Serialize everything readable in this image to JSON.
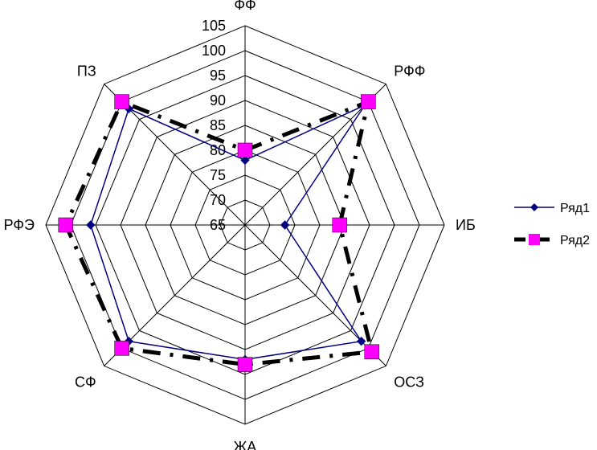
{
  "chart_data": {
    "type": "radar",
    "title": "",
    "categories": [
      "ФФ",
      "РФФ",
      "ИБ",
      "ОСЗ",
      "ЖА",
      "СФ",
      "РФЭ",
      "ПЗ"
    ],
    "rmin": 65,
    "rmax": 105,
    "ticks": [
      65,
      70,
      75,
      80,
      85,
      90,
      95,
      100,
      105
    ],
    "grid": true,
    "legend_position": "right",
    "series": [
      {
        "name": "Ряд1",
        "color": "#000080",
        "marker": "diamond",
        "line": "solid",
        "values": [
          78,
          99,
          73,
          98,
          92,
          98,
          96,
          98
        ]
      },
      {
        "name": "Ряд2",
        "color": "#000000",
        "marker_color": "#ff00ff",
        "marker": "square",
        "line": "dash-dot",
        "values": [
          80,
          100,
          84,
          101,
          93,
          100,
          101,
          100
        ]
      }
    ]
  }
}
